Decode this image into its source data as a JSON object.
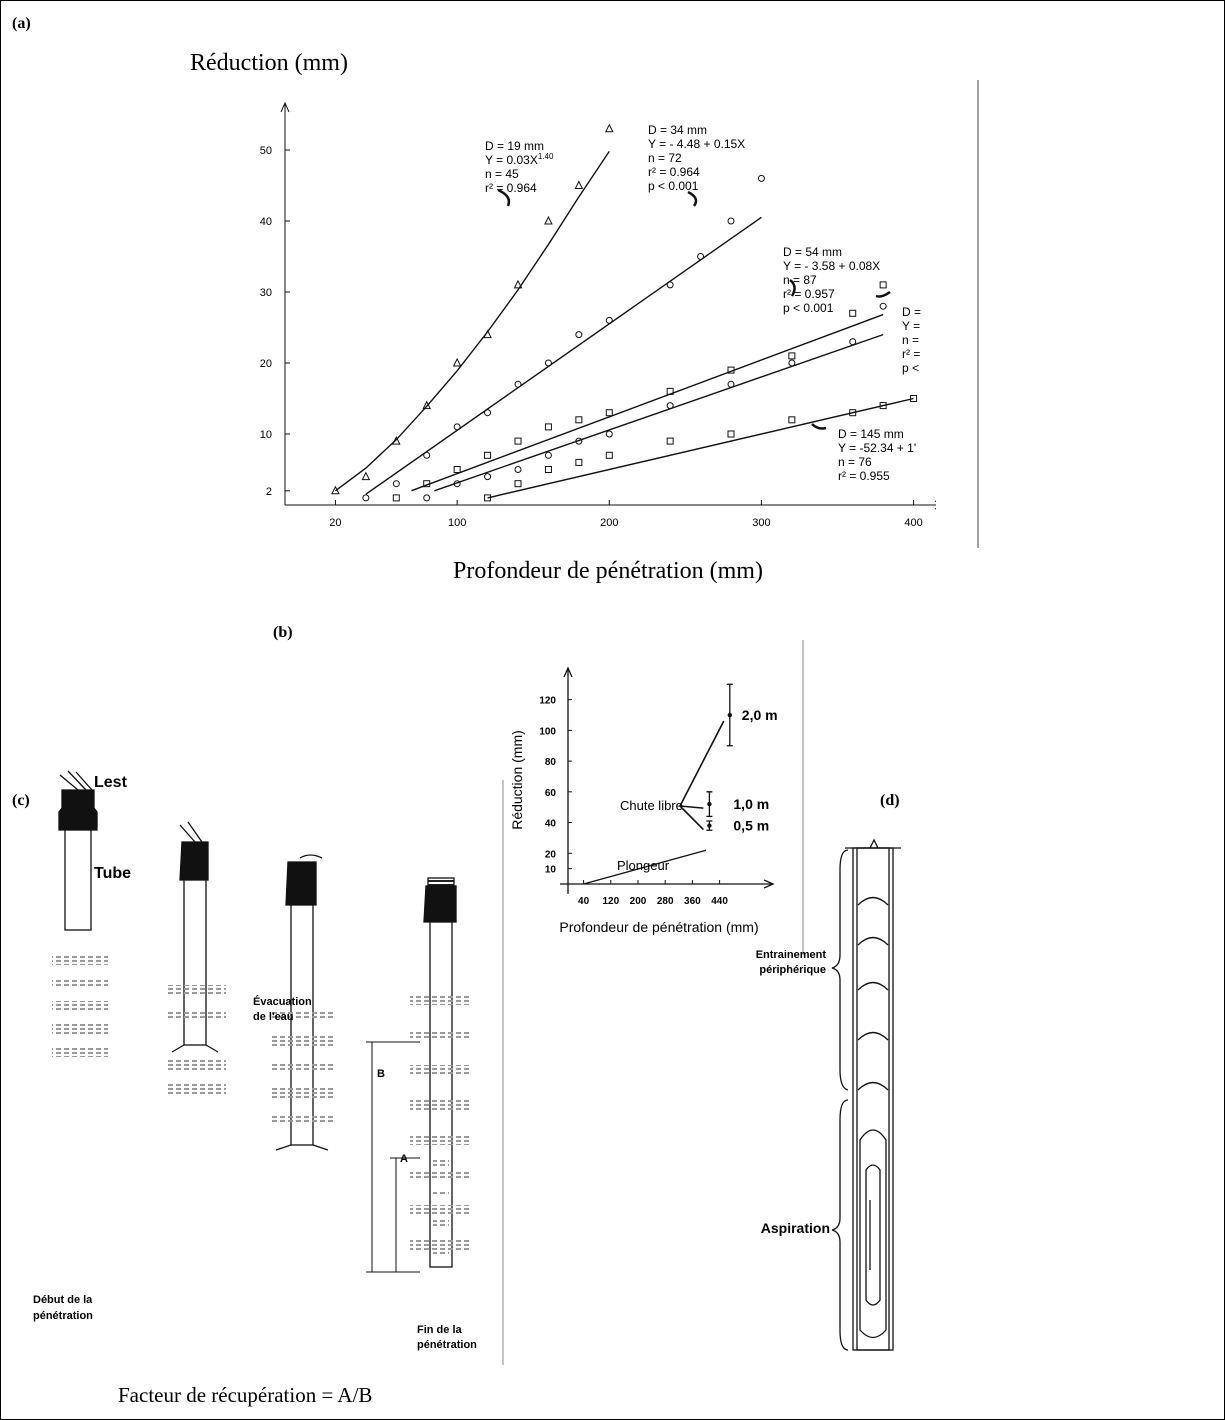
{
  "chart_data": [
    {
      "type": "scatter",
      "label": "(a)",
      "y_label": "Réduction (mm)",
      "x_label": "Profondeur de pénétration (mm)",
      "xlim": [
        0,
        420
      ],
      "ylim": [
        0,
        56
      ],
      "xticks": [
        20,
        100,
        200,
        300,
        400
      ],
      "yticks": [
        2,
        10,
        20,
        30,
        40,
        50
      ],
      "color": "#111",
      "series": [
        {
          "marker": "triangle",
          "x": [
            20,
            40,
            60,
            80,
            100,
            120,
            140,
            160,
            180,
            200
          ],
          "values": [
            2,
            4,
            9,
            14,
            20,
            24,
            31,
            40,
            45,
            53
          ],
          "fit_x": [
            20,
            40,
            60,
            80,
            100,
            120,
            140,
            160,
            180,
            200
          ],
          "fit_values": [
            2.0,
            5.2,
            9.2,
            13.9,
            18.9,
            24.4,
            30.3,
            36.7,
            43.4,
            49.8
          ],
          "annotation": [
            "D = 19 mm",
            {
              "text": "Y = 0.03X",
              "sup": "1.40"
            },
            "n = 45",
            "r² = 0.964"
          ]
        },
        {
          "marker": "circle",
          "x": [
            40,
            60,
            80,
            100,
            120,
            140,
            160,
            180,
            200,
            240,
            260,
            280,
            300
          ],
          "values": [
            1,
            3,
            7,
            11,
            13,
            17,
            20,
            24,
            26,
            31,
            35,
            40,
            46
          ],
          "fit_x": [
            40,
            300
          ],
          "fit_values": [
            1.52,
            40.52
          ],
          "annotation": [
            "D = 34 mm",
            "Y = - 4.48 + 0.15X",
            "n = 72",
            "r² = 0.964",
            "p < 0.001"
          ]
        },
        {
          "marker": "square",
          "x": [
            60,
            80,
            100,
            120,
            140,
            160,
            180,
            200,
            240,
            280,
            320,
            360,
            380
          ],
          "values": [
            1,
            3,
            5,
            7,
            9,
            11,
            12,
            13,
            16,
            19,
            21,
            27,
            31
          ],
          "fit_x": [
            70,
            380
          ],
          "fit_values": [
            2.02,
            26.82
          ],
          "annotation": [
            "D = 54 mm",
            "Y = - 3.58 + 0.08X",
            "n = 87",
            "r² = 0.957",
            "p < 0.001"
          ]
        },
        {
          "marker": "circle",
          "x": [
            80,
            100,
            120,
            140,
            160,
            180,
            200,
            240,
            280,
            320,
            360,
            380
          ],
          "values": [
            1,
            3,
            4,
            5,
            7,
            9,
            10,
            14,
            17,
            20,
            23,
            28
          ],
          "fit_x": [
            85,
            380
          ],
          "fit_values": [
            2,
            24
          ],
          "annotation": [
            "D =",
            "Y =",
            "n =",
            "r² =",
            "p <"
          ]
        },
        {
          "marker": "square",
          "x": [
            120,
            140,
            160,
            180,
            200,
            240,
            280,
            320,
            360,
            380,
            400
          ],
          "values": [
            1,
            3,
            5,
            6,
            7,
            9,
            10,
            12,
            13,
            14,
            15
          ],
          "fit_x": [
            120,
            400
          ],
          "fit_values": [
            1,
            15
          ],
          "annotation": [
            "D = 145 mm",
            "Y = -52.34 + 1'",
            "n = 76",
            "r² = 0.955"
          ]
        }
      ]
    },
    {
      "type": "errorbar",
      "label": "(b)",
      "y_label": "Réduction (mm)",
      "x_label": "Profondeur de pénétration (mm)",
      "xlim": [
        0,
        600
      ],
      "ylim": [
        0,
        135
      ],
      "xticks": [
        40,
        120,
        200,
        280,
        360,
        440
      ],
      "yticks": [
        10,
        20,
        40,
        60,
        80,
        100,
        120
      ],
      "color": "#111",
      "series": [
        {
          "name": "Chute libre",
          "x": [
            470,
            410,
            410
          ],
          "values": [
            110,
            52,
            38
          ],
          "errors": [
            20,
            8,
            3
          ],
          "point_labels": [
            "2,0 m",
            "1,0 m",
            "0,5 m"
          ]
        },
        {
          "name": "Plongeur",
          "x": [
            40,
            400
          ],
          "values": [
            0,
            22
          ]
        }
      ]
    }
  ],
  "diagram_c": {
    "label": "(c)",
    "lest": "Lest",
    "tube": "Tube",
    "start": [
      "Début de la",
      "pénétration"
    ],
    "water": [
      "Évacuation",
      "de l'eau"
    ],
    "b": "B",
    "a": "A",
    "end": [
      "Fin de la",
      "pénétration"
    ],
    "caption": "Facteur de récupération = A/B"
  },
  "diagram_d": {
    "label": "(d)",
    "peripheral": [
      "Entrainement",
      "périphérique"
    ],
    "suction": "Aspiration"
  }
}
